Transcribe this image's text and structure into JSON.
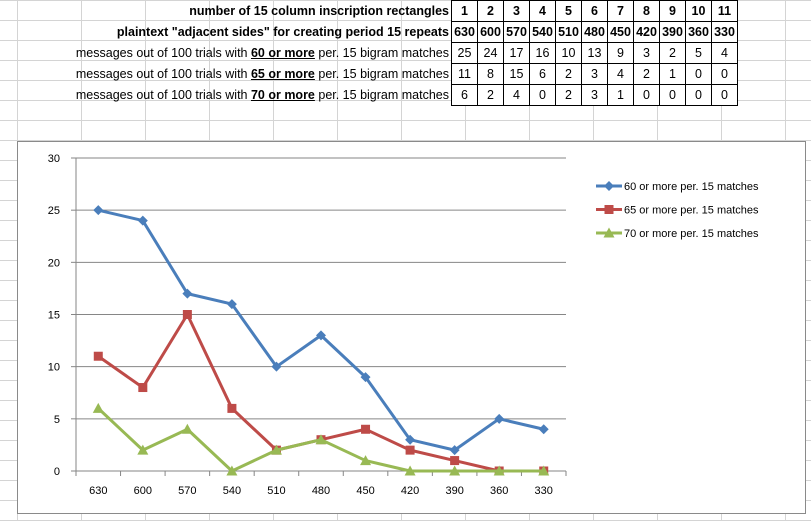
{
  "table": {
    "rows": [
      {
        "bold": true,
        "label_parts": [
          {
            "text": "number of 15 column inscription rectangles",
            "u": false
          }
        ],
        "values": [
          "1",
          "2",
          "3",
          "4",
          "5",
          "6",
          "7",
          "8",
          "9",
          "10",
          "11"
        ]
      },
      {
        "bold": true,
        "label_parts": [
          {
            "text": "plaintext \"adjacent sides\" for creating period 15 repeats",
            "u": false
          }
        ],
        "values": [
          "630",
          "600",
          "570",
          "540",
          "510",
          "480",
          "450",
          "420",
          "390",
          "360",
          "330"
        ]
      },
      {
        "bold": false,
        "label_parts": [
          {
            "text": "messages out of 100  trials with ",
            "u": false
          },
          {
            "text": "60 or more",
            "u": true
          },
          {
            "text": " per. 15 bigram matches",
            "u": false
          }
        ],
        "values": [
          "25",
          "24",
          "17",
          "16",
          "10",
          "13",
          "9",
          "3",
          "2",
          "5",
          "4"
        ]
      },
      {
        "bold": false,
        "label_parts": [
          {
            "text": "messages out of 100  trials with ",
            "u": false
          },
          {
            "text": "65 or more",
            "u": true
          },
          {
            "text": " per. 15 bigram matches",
            "u": false
          }
        ],
        "values": [
          "11",
          "8",
          "15",
          "6",
          "2",
          "3",
          "4",
          "2",
          "1",
          "0",
          "0"
        ]
      },
      {
        "bold": false,
        "label_parts": [
          {
            "text": "messages out of 100  trials with ",
            "u": false
          },
          {
            "text": "70 or more",
            "u": true
          },
          {
            "text": " per. 15 bigram matches",
            "u": false
          }
        ],
        "values": [
          "6",
          "2",
          "4",
          "0",
          "2",
          "3",
          "1",
          "0",
          "0",
          "0",
          "0"
        ]
      }
    ]
  },
  "chart_data": {
    "type": "line",
    "categories": [
      "630",
      "600",
      "570",
      "540",
      "510",
      "480",
      "450",
      "420",
      "390",
      "360",
      "330"
    ],
    "series": [
      {
        "name": "60 or more per. 15 matches",
        "color": "#4a7ebb",
        "marker": "diamond",
        "values": [
          25,
          24,
          17,
          16,
          10,
          13,
          9,
          3,
          2,
          5,
          4
        ]
      },
      {
        "name": "65 or more per. 15 matches",
        "color": "#be4b48",
        "marker": "square",
        "values": [
          11,
          8,
          15,
          6,
          2,
          3,
          4,
          2,
          1,
          0,
          0
        ]
      },
      {
        "name": "70 or more per. 15 matches",
        "color": "#98b954",
        "marker": "triangle",
        "values": [
          6,
          2,
          4,
          0,
          2,
          3,
          1,
          0,
          0,
          0,
          0
        ]
      }
    ],
    "ylim": [
      0,
      30
    ],
    "yticks": [
      0,
      5,
      10,
      15,
      20,
      25,
      30
    ],
    "grid": true,
    "legend": "right"
  }
}
